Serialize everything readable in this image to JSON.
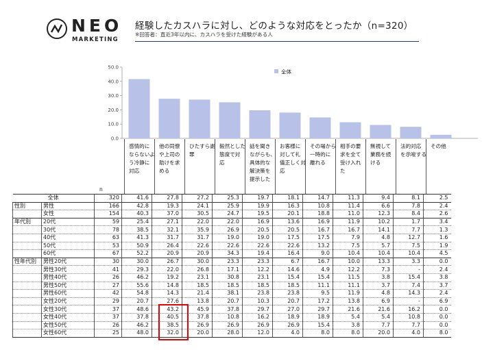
{
  "brand": {
    "name": "NEO",
    "sub": "MARKETING"
  },
  "header": {
    "title": "経験したカスハラに対し、どのような対応をとったか（n=320）",
    "subtitle": "※回答者：直近3年以内に、カスハラを受けた経験がある人"
  },
  "colors": {
    "bar": "#b8c2e8",
    "highlight": "#e00000",
    "rule": "#1f3a7a"
  },
  "chart_data": {
    "type": "bar",
    "categories": [
      "感情的に\nならないよ\nう冷静に\n対応",
      "他の同僚\nや上司の\n助けを求\nめる",
      "ひたすら謝\n罪",
      "毅然とした\n態度で対\n応",
      "話を聞き\nながらも、\n具体的な\n解決策を\n提示した",
      "お客様に\n対して礼\n儀正しく対\n応",
      "その場から\n一時的に\n離れる",
      "相手の要\n求を全て\n受け入れ\nた",
      "無視して\n業務を続\nける",
      "法的対応\nを示唆する",
      "その他"
    ],
    "series": [
      {
        "name": "全体",
        "values": [
          41.6,
          27.8,
          27.2,
          25.3,
          19.7,
          18.1,
          14.7,
          11.3,
          9.4,
          8.1,
          2.5
        ]
      }
    ],
    "ylim": [
      0,
      50
    ],
    "yticks": [
      "0.0",
      "10.0",
      "20.0",
      "30.0",
      "40.0",
      "50.0"
    ],
    "legend_position": "top"
  },
  "table": {
    "n_label": "n",
    "rows": [
      {
        "group": "",
        "label": "全体",
        "n": "320",
        "values": [
          "41.6",
          "27.8",
          "27.2",
          "25.3",
          "19.7",
          "18.1",
          "14.7",
          "11.3",
          "9.4",
          "8.1",
          "2.5"
        ]
      },
      {
        "group": "性別",
        "label": "男性",
        "n": "166",
        "values": [
          "42.8",
          "19.3",
          "24.1",
          "25.9",
          "19.9",
          "16.3",
          "10.8",
          "11.4",
          "6.6",
          "7.8",
          "2.4"
        ]
      },
      {
        "group": "",
        "label": "女性",
        "n": "154",
        "values": [
          "40.3",
          "37.0",
          "30.5",
          "24.7",
          "19.5",
          "20.1",
          "18.8",
          "11.0",
          "12.3",
          "8.4",
          "2.6"
        ]
      },
      {
        "group": "年代別",
        "label": "20代",
        "n": "59",
        "values": [
          "25.4",
          "27.1",
          "22.0",
          "22.0",
          "16.9",
          "13.6",
          "16.9",
          "11.9",
          "10.2",
          "1.7",
          "3.4"
        ]
      },
      {
        "group": "",
        "label": "30代",
        "n": "78",
        "values": [
          "38.5",
          "32.1",
          "35.9",
          "26.9",
          "20.5",
          "20.5",
          "16.7",
          "16.7",
          "14.1",
          "7.7",
          "1.3"
        ]
      },
      {
        "group": "",
        "label": "40代",
        "n": "63",
        "values": [
          "41.3",
          "31.7",
          "31.7",
          "19.0",
          "19.0",
          "17.5",
          "17.5",
          "7.9",
          "4.8",
          "12.7",
          "1.6"
        ]
      },
      {
        "group": "",
        "label": "50代",
        "n": "53",
        "values": [
          "50.9",
          "26.4",
          "22.6",
          "22.6",
          "22.6",
          "22.6",
          "13.2",
          "7.5",
          "5.7",
          "7.5",
          "1.9"
        ]
      },
      {
        "group": "",
        "label": "60代",
        "n": "67",
        "values": [
          "52.2",
          "20.9",
          "20.9",
          "34.3",
          "19.4",
          "16.4",
          "9.0",
          "10.4",
          "10.4",
          "10.4",
          "4.5"
        ]
      },
      {
        "group": "性年代別",
        "label": "男性20代",
        "n": "30",
        "values": [
          "30.0",
          "26.7",
          "30.0",
          "23.3",
          "23.3",
          "6.7",
          "16.7",
          "10.0",
          "13.3",
          "3.3",
          "0.0"
        ]
      },
      {
        "group": "",
        "label": "男性30代",
        "n": "41",
        "values": [
          "29.3",
          "22.0",
          "26.8",
          "17.1",
          "12.2",
          "14.6",
          "4.9",
          "12.2",
          "7.3",
          "-",
          "2.4"
        ]
      },
      {
        "group": "",
        "label": "男性40代",
        "n": "26",
        "values": [
          "46.2",
          "19.2",
          "23.1",
          "30.8",
          "23.1",
          "15.4",
          "15.4",
          "11.5",
          "3.8",
          "15.4",
          "3.8"
        ]
      },
      {
        "group": "",
        "label": "男性50代",
        "n": "27",
        "values": [
          "55.6",
          "14.8",
          "18.5",
          "18.5",
          "18.5",
          "18.5",
          "11.1",
          "11.1",
          "3.7",
          "7.4",
          "3.7"
        ]
      },
      {
        "group": "",
        "label": "男性60代",
        "n": "42",
        "values": [
          "54.8",
          "14.3",
          "21.4",
          "38.1",
          "23.8",
          "23.8",
          "9.5",
          "11.9",
          "4.8",
          "14.3",
          "2.4"
        ]
      },
      {
        "group": "",
        "label": "女性20代",
        "n": "29",
        "values": [
          "20.7",
          "27.6",
          "13.8",
          "20.7",
          "10.3",
          "20.7",
          "17.2",
          "13.8",
          "6.9",
          "-",
          "6.9"
        ]
      },
      {
        "group": "",
        "label": "女性30代",
        "n": "37",
        "values": [
          "48.6",
          "43.2",
          "45.9",
          "37.8",
          "29.7",
          "27.0",
          "29.7",
          "21.6",
          "21.6",
          "16.2",
          "0.0"
        ]
      },
      {
        "group": "",
        "label": "女性40代",
        "n": "37",
        "values": [
          "37.8",
          "40.5",
          "37.8",
          "10.8",
          "16.2",
          "18.9",
          "18.9",
          "5.4",
          "5.4",
          "10.8",
          "0.0"
        ]
      },
      {
        "group": "",
        "label": "女性50代",
        "n": "26",
        "values": [
          "46.2",
          "38.5",
          "26.9",
          "26.9",
          "26.9",
          "26.9",
          "15.4",
          "3.8",
          "7.7",
          "7.7",
          "0.0"
        ]
      },
      {
        "group": "",
        "label": "女性60代",
        "n": "25",
        "values": [
          "48.0",
          "32.0",
          "20.0",
          "28.0",
          "12.0",
          "4.0",
          "8.0",
          "8.0",
          "20.0",
          "4.0",
          "8.0"
        ]
      }
    ]
  }
}
